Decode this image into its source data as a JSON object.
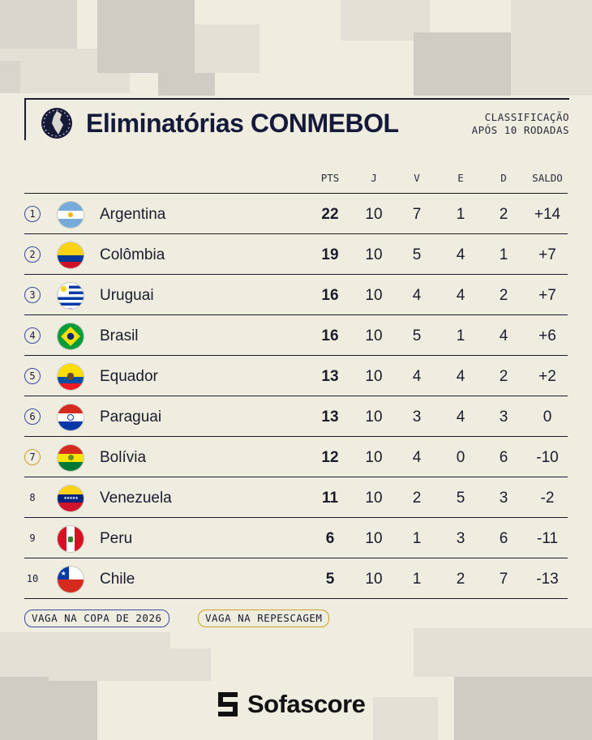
{
  "header": {
    "title": "Eliminatórias CONMEBOL",
    "subtitle_line1": "CLASSIFICAÇÃO",
    "subtitle_line2": "APÓS 10 RODADAS"
  },
  "columns": [
    "PTS",
    "J",
    "V",
    "E",
    "D",
    "SALDO"
  ],
  "rows": [
    {
      "pos": "1",
      "team": "Argentina",
      "pts": "22",
      "j": "10",
      "v": "7",
      "e": "1",
      "d": "2",
      "saldo": "+14",
      "status": "copa"
    },
    {
      "pos": "2",
      "team": "Colômbia",
      "pts": "19",
      "j": "10",
      "v": "5",
      "e": "4",
      "d": "1",
      "saldo": "+7",
      "status": "copa"
    },
    {
      "pos": "3",
      "team": "Uruguai",
      "pts": "16",
      "j": "10",
      "v": "4",
      "e": "4",
      "d": "2",
      "saldo": "+7",
      "status": "copa"
    },
    {
      "pos": "4",
      "team": "Brasil",
      "pts": "16",
      "j": "10",
      "v": "5",
      "e": "1",
      "d": "4",
      "saldo": "+6",
      "status": "copa"
    },
    {
      "pos": "5",
      "team": "Equador",
      "pts": "13",
      "j": "10",
      "v": "4",
      "e": "4",
      "d": "2",
      "saldo": "+2",
      "status": "copa"
    },
    {
      "pos": "6",
      "team": "Paraguai",
      "pts": "13",
      "j": "10",
      "v": "3",
      "e": "4",
      "d": "3",
      "saldo": "0",
      "status": "copa"
    },
    {
      "pos": "7",
      "team": "Bolívia",
      "pts": "12",
      "j": "10",
      "v": "4",
      "e": "0",
      "d": "6",
      "saldo": "-10",
      "status": "repescagem"
    },
    {
      "pos": "8",
      "team": "Venezuela",
      "pts": "11",
      "j": "10",
      "v": "2",
      "e": "5",
      "d": "3",
      "saldo": "-2",
      "status": "none"
    },
    {
      "pos": "9",
      "team": "Peru",
      "pts": "6",
      "j": "10",
      "v": "1",
      "e": "3",
      "d": "6",
      "saldo": "-11",
      "status": "none"
    },
    {
      "pos": "10",
      "team": "Chile",
      "pts": "5",
      "j": "10",
      "v": "1",
      "e": "2",
      "d": "7",
      "saldo": "-13",
      "status": "none"
    }
  ],
  "legend": {
    "copa": "VAGA NA COPA DE 2026",
    "repescagem": "VAGA NA REPESCAGEM"
  },
  "brand": "Sofascore",
  "colors": {
    "background": "#efece0",
    "navy": "#15193a",
    "copa_ring": "#3b4aa0",
    "repescagem_ring": "#c9a227"
  }
}
